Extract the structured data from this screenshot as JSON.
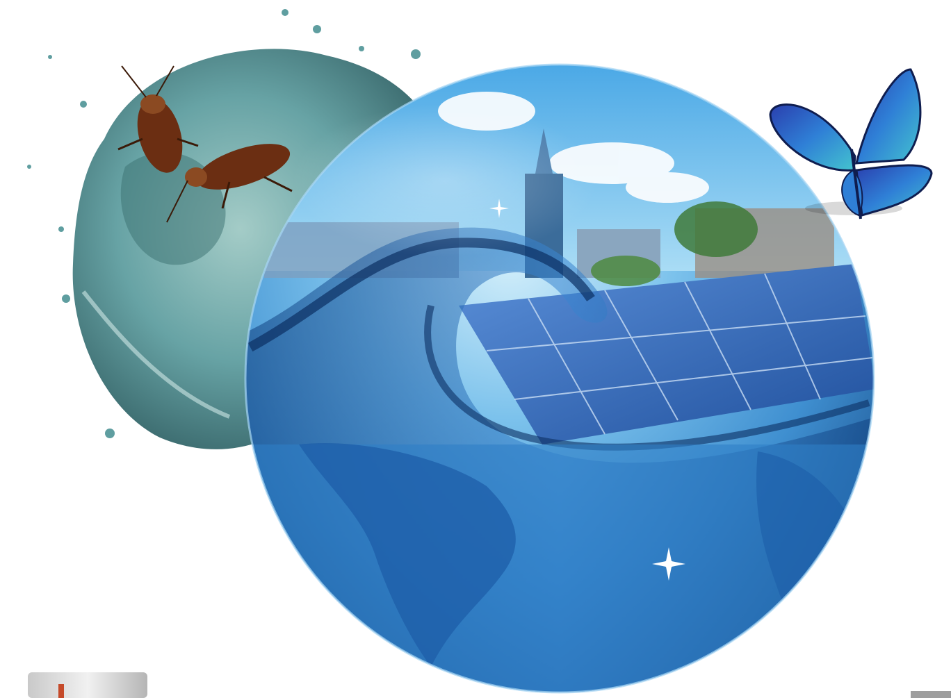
{
  "image": {
    "type": "illustration",
    "colors": {
      "background": "#ffffff",
      "ocean_dark": "#1a4f8c",
      "ocean_mid": "#3f8fd0",
      "ocean_light": "#b8e2f7",
      "splash_teal": "#5f9ea0",
      "solar_panel": "#2a5fb0",
      "butterfly_blue": "#2f7fd6",
      "butterfly_teal": "#44c4cf",
      "insect_brown": "#6b2e12"
    },
    "elements": [
      {
        "id": "water-splash-globe",
        "icon": "water-globe"
      },
      {
        "id": "cockroach-left",
        "icon": "cockroach"
      },
      {
        "id": "cockroach-right",
        "icon": "cockroach"
      },
      {
        "id": "main-globe",
        "icon": "globe"
      },
      {
        "id": "solar-panels",
        "icon": "solar-panel"
      },
      {
        "id": "city-skyline",
        "icon": "buildings"
      },
      {
        "id": "water-wave",
        "icon": "wave"
      },
      {
        "id": "butterfly",
        "icon": "butterfly"
      },
      {
        "id": "sparkle",
        "icon": "sparkle"
      },
      {
        "id": "product-corner",
        "icon": "appliance"
      }
    ]
  }
}
